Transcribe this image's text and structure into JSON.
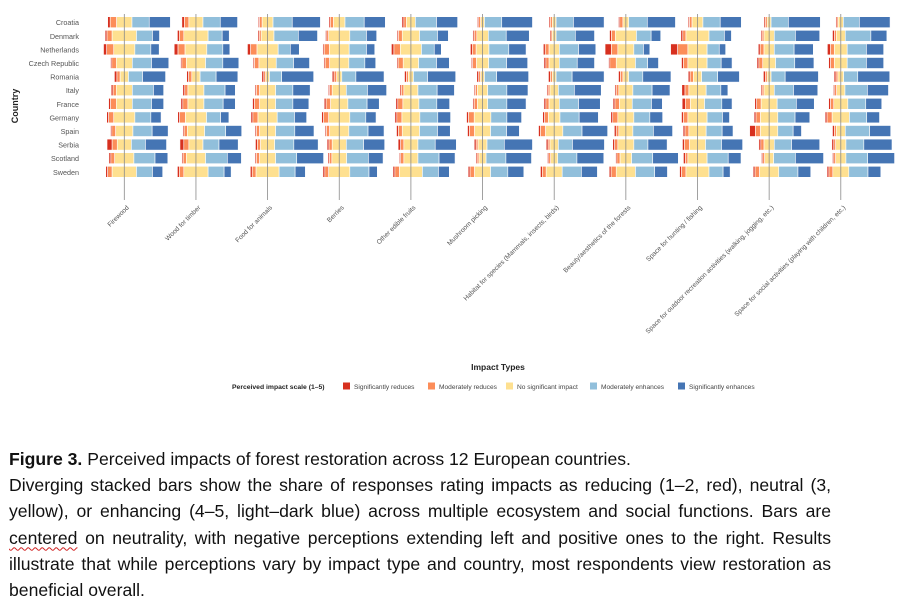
{
  "chart_data": {
    "type": "bar",
    "subtype": "diverging-stacked-horizontal-faceted",
    "ylabel": "Country",
    "xlabel": "Impact Types",
    "legend": {
      "title": "Perceived impact scale (1–5)",
      "placement": "bottom",
      "entries": [
        {
          "label": "Significantly reduces",
          "color": "#d7301f"
        },
        {
          "label": "Moderately reduces",
          "color": "#fc8d59"
        },
        {
          "label": "No significant impact",
          "color": "#fee090"
        },
        {
          "label": "Moderately enhances",
          "color": "#91bfdb"
        },
        {
          "label": "Significantly enhances",
          "color": "#4575b4"
        }
      ]
    },
    "centered_on": "No significant impact",
    "unit": "percent of responses",
    "countries": [
      "Croatia",
      "Denmark",
      "Netherlands",
      "Czech Republic",
      "Romania",
      "Italy",
      "France",
      "Germany",
      "Spain",
      "Serbia",
      "Scotland",
      "Sweden"
    ],
    "impact_types": [
      "Firewood",
      "Wood for timber",
      "Food for animals",
      "Berries",
      "Other edible fruits",
      "Mushroom picking",
      "Habitat for species (Mammals, insects, birds)",
      "Beauty/aesthetics of the forests",
      "Space for hunting / fishing",
      "Space for outdoor recreation activities (walking, jogging, etc.)",
      "Space for social activities (playing with children, etc.)"
    ],
    "series_order": [
      "Significantly reduces",
      "Moderately reduces",
      "No significant impact",
      "Moderately enhances",
      "Significantly enhances"
    ],
    "values": {
      "Croatia": [
        [
          4,
          10,
          24,
          27,
          33
        ],
        [
          4,
          7,
          22,
          27,
          27
        ],
        [
          2,
          4,
          17,
          30,
          44
        ],
        [
          2,
          5,
          18,
          30,
          33
        ],
        [
          3,
          4,
          14,
          33,
          33
        ],
        [
          2,
          3,
          6,
          27,
          48
        ],
        [
          2,
          3,
          6,
          27,
          48
        ],
        [
          2,
          5,
          9,
          29,
          44
        ],
        [
          2,
          4,
          17,
          27,
          33
        ],
        [
          2,
          3,
          6,
          27,
          50
        ],
        [
          2,
          2,
          8,
          25,
          48
        ]
      ],
      "Denmark": [
        [
          3,
          8,
          38,
          25,
          11
        ],
        [
          3,
          7,
          38,
          22,
          11
        ],
        [
          2,
          3,
          20,
          38,
          30
        ],
        [
          2,
          3,
          33,
          26,
          16
        ],
        [
          2,
          6,
          27,
          28,
          17
        ],
        [
          2,
          4,
          18,
          28,
          36
        ],
        [
          2,
          2,
          6,
          30,
          30
        ],
        [
          3,
          6,
          33,
          23,
          15
        ],
        [
          3,
          5,
          36,
          24,
          11
        ],
        [
          2,
          3,
          16,
          33,
          38
        ],
        [
          3,
          3,
          14,
          40,
          25
        ]
      ],
      "Netherlands": [
        [
          5,
          11,
          33,
          25,
          13
        ],
        [
          6,
          11,
          34,
          25,
          11
        ],
        [
          5,
          10,
          33,
          19,
          14
        ],
        [
          2,
          8,
          31,
          27,
          13
        ],
        [
          4,
          10,
          33,
          20,
          11
        ],
        [
          3,
          6,
          20,
          31,
          27
        ],
        [
          3,
          6,
          16,
          30,
          27
        ],
        [
          10,
          10,
          25,
          15,
          10
        ],
        [
          11,
          16,
          30,
          19,
          10
        ],
        [
          3,
          6,
          16,
          31,
          30
        ],
        [
          5,
          6,
          20,
          30,
          27
        ]
      ],
      "Czech Republic": [
        [
          2,
          7,
          25,
          30,
          27
        ],
        [
          2,
          7,
          30,
          27,
          25
        ],
        [
          2,
          7,
          27,
          27,
          25
        ],
        [
          2,
          7,
          30,
          25,
          17
        ],
        [
          2,
          8,
          24,
          28,
          20
        ],
        [
          2,
          6,
          19,
          28,
          33
        ],
        [
          3,
          5,
          16,
          28,
          27
        ],
        [
          2,
          10,
          30,
          19,
          17
        ],
        [
          3,
          7,
          30,
          22,
          17
        ],
        [
          3,
          6,
          20,
          30,
          30
        ],
        [
          3,
          6,
          20,
          30,
          27
        ]
      ],
      "Romania": [
        [
          4,
          5,
          13,
          22,
          36
        ],
        [
          3,
          5,
          13,
          25,
          34
        ],
        [
          3,
          3,
          6,
          19,
          50
        ],
        [
          3,
          4,
          8,
          22,
          44
        ],
        [
          3,
          3,
          8,
          22,
          44
        ],
        [
          3,
          3,
          6,
          19,
          50
        ],
        [
          3,
          3,
          6,
          25,
          50
        ],
        [
          3,
          4,
          9,
          22,
          44
        ],
        [
          3,
          5,
          13,
          25,
          34
        ],
        [
          3,
          3,
          6,
          22,
          52
        ],
        [
          3,
          3,
          9,
          22,
          50
        ]
      ],
      "Italy": [
        [
          3,
          5,
          25,
          33,
          16
        ],
        [
          3,
          5,
          25,
          33,
          16
        ],
        [
          2,
          5,
          25,
          27,
          27
        ],
        [
          2,
          4,
          22,
          33,
          30
        ],
        [
          2,
          4,
          22,
          30,
          27
        ],
        [
          2,
          3,
          16,
          30,
          33
        ],
        [
          2,
          3,
          13,
          25,
          42
        ],
        [
          2,
          4,
          22,
          30,
          28
        ],
        [
          5,
          6,
          27,
          23,
          11
        ],
        [
          2,
          3,
          16,
          30,
          38
        ],
        [
          2,
          3,
          13,
          35,
          33
        ]
      ],
      "France": [
        [
          3,
          9,
          25,
          30,
          19
        ],
        [
          3,
          8,
          25,
          30,
          19
        ],
        [
          3,
          8,
          25,
          27,
          25
        ],
        [
          3,
          7,
          27,
          30,
          19
        ],
        [
          3,
          8,
          25,
          28,
          20
        ],
        [
          2,
          5,
          16,
          30,
          30
        ],
        [
          3,
          5,
          16,
          30,
          34
        ],
        [
          3,
          7,
          20,
          30,
          17
        ],
        [
          5,
          8,
          22,
          27,
          16
        ],
        [
          3,
          7,
          25,
          30,
          28
        ],
        [
          3,
          5,
          22,
          28,
          25
        ]
      ],
      "Germany": [
        [
          3,
          8,
          33,
          25,
          16
        ],
        [
          3,
          9,
          33,
          22,
          13
        ],
        [
          3,
          8,
          30,
          27,
          19
        ],
        [
          3,
          8,
          33,
          25,
          16
        ],
        [
          3,
          8,
          28,
          28,
          20
        ],
        [
          3,
          9,
          26,
          25,
          23
        ],
        [
          3,
          6,
          18,
          30,
          30
        ],
        [
          3,
          8,
          25,
          25,
          20
        ],
        [
          3,
          7,
          30,
          24,
          11
        ],
        [
          3,
          7,
          27,
          27,
          23
        ],
        [
          3,
          8,
          27,
          27,
          20
        ]
      ],
      "Spain": [
        [
          2,
          6,
          27,
          30,
          25
        ],
        [
          2,
          5,
          27,
          33,
          25
        ],
        [
          2,
          5,
          25,
          30,
          30
        ],
        [
          2,
          5,
          30,
          30,
          25
        ],
        [
          3,
          6,
          27,
          28,
          20
        ],
        [
          3,
          8,
          25,
          25,
          20
        ],
        [
          3,
          8,
          27,
          30,
          40
        ],
        [
          3,
          4,
          22,
          32,
          30
        ],
        [
          3,
          6,
          27,
          25,
          17
        ],
        [
          9,
          8,
          27,
          24,
          13
        ],
        [
          3,
          3,
          14,
          38,
          33
        ]
      ],
      "Serbia": [
        [
          8,
          8,
          22,
          22,
          33
        ],
        [
          6,
          8,
          22,
          25,
          30
        ],
        [
          3,
          5,
          22,
          30,
          38
        ],
        [
          3,
          5,
          22,
          27,
          33
        ],
        [
          4,
          5,
          22,
          27,
          33
        ],
        [
          3,
          3,
          14,
          27,
          44
        ],
        [
          3,
          3,
          13,
          22,
          50
        ],
        [
          3,
          5,
          25,
          22,
          30
        ],
        [
          3,
          8,
          25,
          25,
          33
        ],
        [
          3,
          5,
          16,
          27,
          44
        ],
        [
          3,
          3,
          16,
          28,
          44
        ]
      ],
      "Scotland": [
        [
          3,
          6,
          30,
          33,
          20
        ],
        [
          2,
          5,
          30,
          34,
          22
        ],
        [
          2,
          5,
          25,
          33,
          42
        ],
        [
          2,
          4,
          23,
          34,
          23
        ],
        [
          2,
          5,
          22,
          33,
          25
        ],
        [
          2,
          3,
          11,
          31,
          40
        ],
        [
          2,
          3,
          11,
          30,
          42
        ],
        [
          2,
          5,
          18,
          33,
          40
        ],
        [
          3,
          4,
          30,
          33,
          20
        ],
        [
          2,
          3,
          14,
          34,
          44
        ],
        [
          2,
          3,
          16,
          34,
          42
        ]
      ],
      "Sweden": [
        [
          3,
          7,
          38,
          25,
          16
        ],
        [
          3,
          7,
          38,
          25,
          11
        ],
        [
          3,
          6,
          36,
          25,
          16
        ],
        [
          3,
          6,
          33,
          30,
          13
        ],
        [
          3,
          7,
          36,
          25,
          17
        ],
        [
          3,
          7,
          25,
          27,
          25
        ],
        [
          3,
          6,
          25,
          30,
          25
        ],
        [
          3,
          8,
          30,
          30,
          20
        ],
        [
          3,
          7,
          36,
          22,
          11
        ],
        [
          3,
          7,
          30,
          30,
          20
        ],
        [
          3,
          6,
          25,
          30,
          20
        ]
      ]
    }
  },
  "caption": {
    "figure_label": "Figure 3.",
    "title": " Perceived impacts of forest restoration across 12 European countries.",
    "body_before": "Diverging stacked bars show the share of responses rating impacts as reducing (1–2, red), neutral (3, yellow), or enhancing (4–5, light–dark blue) across multiple ecosystem and social functions. Bars are ",
    "flagged_word": "centered",
    "body_after": " on neutrality, with negative perceptions extending left and positive ones to the right. Results illustrate that while perceptions vary by impact type and country, most respondents view restoration as beneficial overall."
  }
}
